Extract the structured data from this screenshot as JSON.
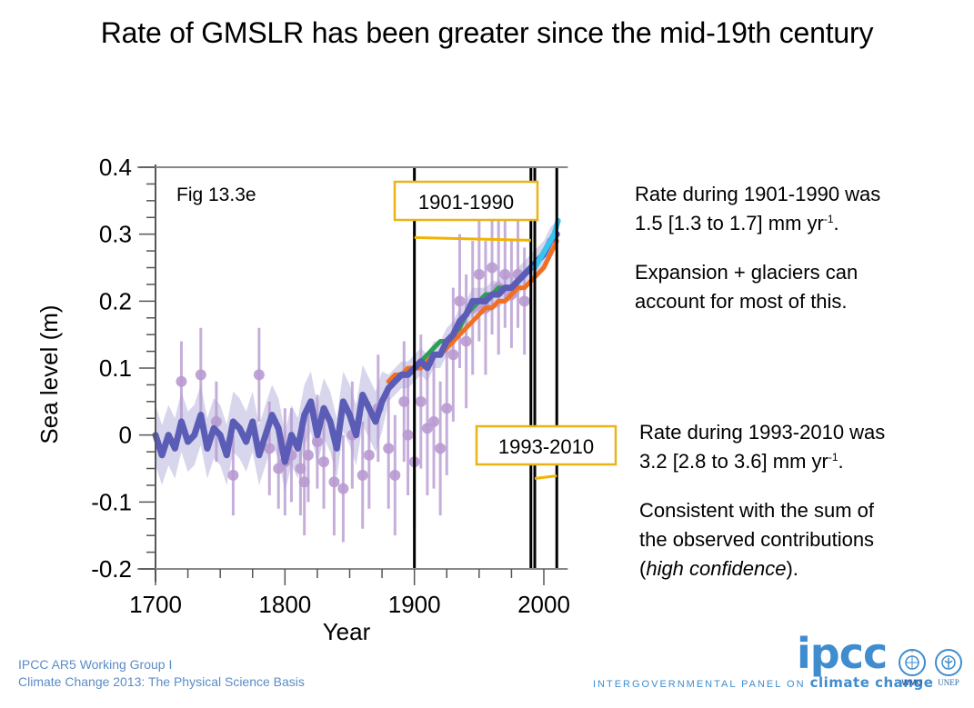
{
  "slide": {
    "title": "Rate of GMSLR has been greater since the mid-19th century",
    "notes": {
      "upper": {
        "line1": "Rate during 1901-1990 was",
        "line2_prefix": "1.5 [1.3 to 1.7] mm yr",
        "line2_sup": "-1",
        "line2_suffix": ".",
        "line3": "Expansion + glaciers can",
        "line4": "account for most of this."
      },
      "lower": {
        "line1": "Rate during 1993-2010 was",
        "line2_prefix": "3.2 [2.8 to 3.6] mm yr",
        "line2_sup": "-1",
        "line2_suffix": ".",
        "line3": "Consistent with the sum of",
        "line4": "the observed contributions",
        "line5_open": "(",
        "line5_italic": "high confidence",
        "line5_close": ")."
      }
    },
    "footer": {
      "line1": "IPCC AR5 Working Group I",
      "line2": "Climate Change 2013:  The Physical Science Basis",
      "logo_text": "ipcc",
      "tagline_prefix": "INTERGOVERNMENTAL PANEL ON ",
      "tagline_bold": "climate change",
      "org1": "WMO",
      "org2": "UNEP"
    }
  },
  "chart_data": {
    "type": "line",
    "title": "",
    "annotation": "Fig 13.3e",
    "xlabel": "Year",
    "ylabel": "Sea level (m)",
    "xlim": [
      1700,
      2015
    ],
    "ylim": [
      -0.2,
      0.4
    ],
    "xticks": [
      1700,
      1800,
      1900,
      2000
    ],
    "xtick_labels": [
      "1700",
      "1800",
      "1900",
      "2000"
    ],
    "yticks": [
      -0.2,
      -0.1,
      0,
      0.1,
      0.2,
      0.3,
      0.4
    ],
    "ytick_labels": [
      "-0.2",
      "-0.1",
      "0",
      "0.1",
      "0.2",
      "0.3",
      "0.4"
    ],
    "grid": false,
    "legend": "none",
    "period_lines": [
      1900,
      1990,
      1993,
      2010
    ],
    "period_labels": [
      {
        "text": "1901-1990",
        "start": 1900,
        "end": 1990,
        "rate_line_y": 0.295,
        "box_color": "#e8b418"
      },
      {
        "text": "1993-2010",
        "start": 1993,
        "end": 2010,
        "rate_line_y": -0.065,
        "box_color": "#e8b418"
      }
    ],
    "colors": {
      "reconstruction": "#5b5cb6",
      "reconstruction_band": "#c9c8e6",
      "proxy": "#b89ad2",
      "green": "#2e9e56",
      "orange": "#f26f21",
      "cyan": "#38c3f0",
      "rate_line": "#f0b400",
      "axis": "#888888"
    },
    "series": [
      {
        "name": "Long reconstruction (purple)",
        "x": [
          1700,
          1705,
          1710,
          1715,
          1720,
          1725,
          1730,
          1735,
          1740,
          1745,
          1750,
          1755,
          1760,
          1765,
          1770,
          1775,
          1780,
          1785,
          1790,
          1795,
          1800,
          1805,
          1810,
          1815,
          1820,
          1825,
          1830,
          1835,
          1840,
          1845,
          1850,
          1855,
          1860,
          1865,
          1870,
          1875,
          1880,
          1885,
          1890,
          1895,
          1900,
          1905,
          1910,
          1915,
          1920,
          1925,
          1930,
          1935,
          1940,
          1945,
          1950,
          1955,
          1960,
          1965,
          1970,
          1975,
          1980,
          1985,
          1990,
          1995,
          2000,
          2005,
          2010
        ],
        "y": [
          0.0,
          -0.03,
          0.0,
          -0.02,
          0.02,
          -0.01,
          0.0,
          0.03,
          -0.02,
          0.01,
          0.0,
          -0.03,
          0.02,
          0.01,
          -0.01,
          0.02,
          -0.03,
          0.0,
          0.03,
          0.01,
          -0.04,
          0.0,
          -0.02,
          0.03,
          0.05,
          0.0,
          0.04,
          0.02,
          -0.02,
          0.05,
          0.03,
          0.0,
          0.06,
          0.04,
          0.02,
          0.05,
          0.07,
          0.08,
          0.09,
          0.09,
          0.1,
          0.11,
          0.1,
          0.12,
          0.12,
          0.14,
          0.15,
          0.17,
          0.18,
          0.2,
          0.2,
          0.2,
          0.21,
          0.21,
          0.22,
          0.22,
          0.23,
          0.24,
          0.25,
          0.26,
          0.27,
          0.29,
          0.3
        ]
      },
      {
        "name": "Green reconstruction",
        "x": [
          1900,
          1905,
          1910,
          1915,
          1920,
          1925,
          1930,
          1935,
          1940,
          1945,
          1950,
          1955,
          1960,
          1965,
          1970,
          1975,
          1980,
          1985,
          1990
        ],
        "y": [
          0.1,
          0.11,
          0.12,
          0.13,
          0.14,
          0.14,
          0.15,
          0.16,
          0.18,
          0.19,
          0.2,
          0.21,
          0.21,
          0.22,
          0.22,
          0.22,
          0.23,
          0.24,
          0.25
        ]
      },
      {
        "name": "Orange reconstruction",
        "x": [
          1880,
          1885,
          1890,
          1895,
          1900,
          1905,
          1910,
          1915,
          1920,
          1925,
          1930,
          1935,
          1940,
          1945,
          1950,
          1955,
          1960,
          1965,
          1970,
          1975,
          1980,
          1985,
          1990,
          1995,
          2000,
          2005,
          2010
        ],
        "y": [
          0.08,
          0.09,
          0.09,
          0.1,
          0.1,
          0.1,
          0.11,
          0.12,
          0.12,
          0.13,
          0.14,
          0.15,
          0.16,
          0.17,
          0.18,
          0.19,
          0.19,
          0.2,
          0.2,
          0.21,
          0.22,
          0.22,
          0.23,
          0.24,
          0.25,
          0.27,
          0.29
        ]
      },
      {
        "name": "Satellite altimetry (cyan)",
        "x": [
          1993,
          1996,
          1999,
          2002,
          2005,
          2008,
          2011
        ],
        "y": [
          0.25,
          0.26,
          0.27,
          0.28,
          0.29,
          0.3,
          0.32
        ]
      },
      {
        "name": "Proxy/tide-gauge points (light purple, with error bars)",
        "x": [
          1720,
          1735,
          1747,
          1760,
          1780,
          1788,
          1795,
          1800,
          1805,
          1812,
          1815,
          1818,
          1825,
          1830,
          1838,
          1845,
          1852,
          1860,
          1865,
          1872,
          1880,
          1885,
          1892,
          1895,
          1900,
          1905,
          1910,
          1915,
          1920,
          1925,
          1930,
          1935,
          1940,
          1945,
          1950,
          1955,
          1960,
          1965,
          1970,
          1975,
          1980,
          1985
        ],
        "y": [
          0.08,
          0.09,
          0.02,
          -0.06,
          0.09,
          -0.02,
          -0.05,
          -0.04,
          -0.03,
          -0.05,
          -0.07,
          -0.03,
          -0.01,
          -0.04,
          -0.07,
          -0.08,
          0.0,
          -0.06,
          -0.03,
          0.04,
          -0.02,
          -0.06,
          0.05,
          0.0,
          -0.04,
          0.05,
          0.01,
          0.02,
          -0.02,
          0.04,
          0.12,
          0.2,
          0.14,
          0.19,
          0.24,
          0.19,
          0.25,
          0.22,
          0.24,
          0.21,
          0.24,
          0.2
        ],
        "err": [
          0.06,
          0.07,
          0.06,
          0.06,
          0.07,
          0.07,
          0.06,
          0.08,
          0.07,
          0.07,
          0.08,
          0.07,
          0.07,
          0.07,
          0.08,
          0.08,
          0.08,
          0.08,
          0.08,
          0.08,
          0.09,
          0.09,
          0.09,
          0.09,
          0.1,
          0.1,
          0.1,
          0.1,
          0.1,
          0.1,
          0.1,
          0.1,
          0.1,
          0.1,
          0.1,
          0.1,
          0.1,
          0.1,
          0.08,
          0.08,
          0.08,
          0.08
        ]
      }
    ]
  }
}
